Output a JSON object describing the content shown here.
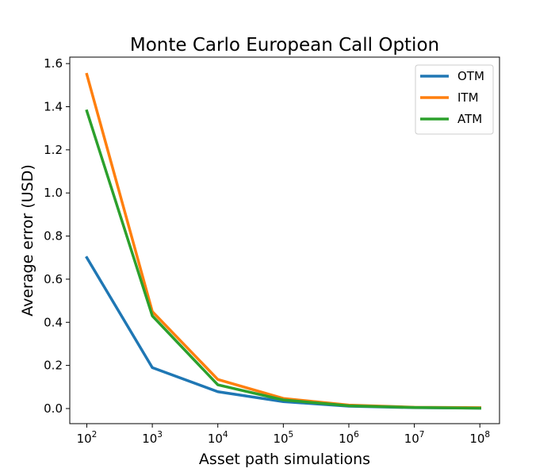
{
  "chart_data": {
    "type": "line",
    "title": "Monte Carlo European Call Option",
    "xlabel": "Asset path simulations",
    "ylabel": "Average error (USD)",
    "x_scale": "log",
    "x": [
      100,
      1000,
      10000,
      100000,
      1000000,
      10000000,
      100000000
    ],
    "x_tick_labels": [
      {
        "base": "10",
        "exp": "2"
      },
      {
        "base": "10",
        "exp": "3"
      },
      {
        "base": "10",
        "exp": "4"
      },
      {
        "base": "10",
        "exp": "5"
      },
      {
        "base": "10",
        "exp": "6"
      },
      {
        "base": "10",
        "exp": "7"
      },
      {
        "base": "10",
        "exp": "8"
      }
    ],
    "xlim_exp": [
      1.74,
      8.3
    ],
    "ylim": [
      -0.07,
      1.63
    ],
    "y_ticks": [
      0.0,
      0.2,
      0.4,
      0.6,
      0.8,
      1.0,
      1.2,
      1.4,
      1.6
    ],
    "y_tick_labels": [
      "0.0",
      "0.2",
      "0.4",
      "0.6",
      "0.8",
      "1.0",
      "1.2",
      "1.4",
      "1.6"
    ],
    "grid": false,
    "legend_position": "top-right",
    "series": [
      {
        "name": "OTM",
        "color": "#1f77b4",
        "values": [
          0.7,
          0.19,
          0.078,
          0.032,
          0.011,
          0.004,
          0.002
        ]
      },
      {
        "name": "ITM",
        "color": "#ff7f0e",
        "values": [
          1.55,
          0.45,
          0.135,
          0.047,
          0.016,
          0.006,
          0.004
        ]
      },
      {
        "name": "ATM",
        "color": "#2ca02c",
        "values": [
          1.38,
          0.43,
          0.11,
          0.04,
          0.013,
          0.005,
          0.002
        ]
      }
    ]
  }
}
